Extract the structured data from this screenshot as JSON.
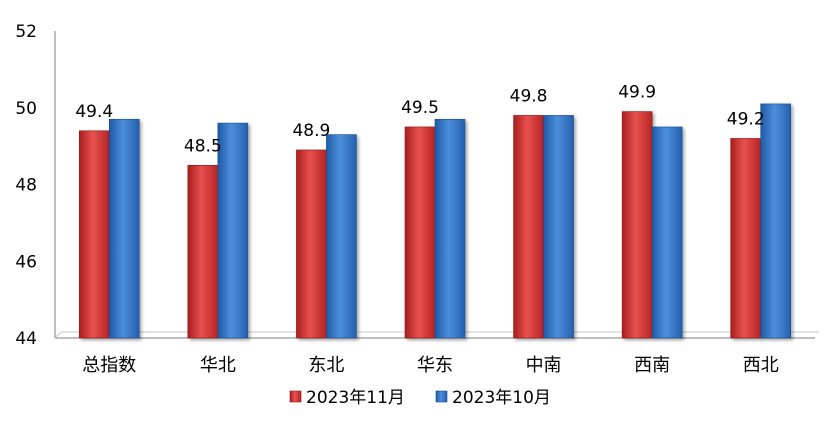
{
  "chart_data": {
    "type": "bar",
    "categories": [
      "总指数",
      "华北",
      "东北",
      "华东",
      "中南",
      "西南",
      "西北"
    ],
    "series": [
      {
        "name": "2023年11月",
        "values": [
          49.4,
          48.5,
          48.9,
          49.5,
          49.8,
          49.9,
          49.2
        ],
        "color": "#d93b3b"
      },
      {
        "name": "2023年10月",
        "values": [
          49.7,
          49.6,
          49.3,
          49.7,
          49.8,
          49.5,
          50.1
        ],
        "color": "#3a78c9"
      }
    ],
    "data_labels": [
      "49.4",
      "48.5",
      "48.9",
      "49.5",
      "49.8",
      "49.9",
      "49.2"
    ],
    "yticks": [
      "44",
      "46",
      "48",
      "50",
      "52"
    ],
    "ylim": [
      44,
      52
    ],
    "grid": false,
    "legend_position": "bottom"
  }
}
